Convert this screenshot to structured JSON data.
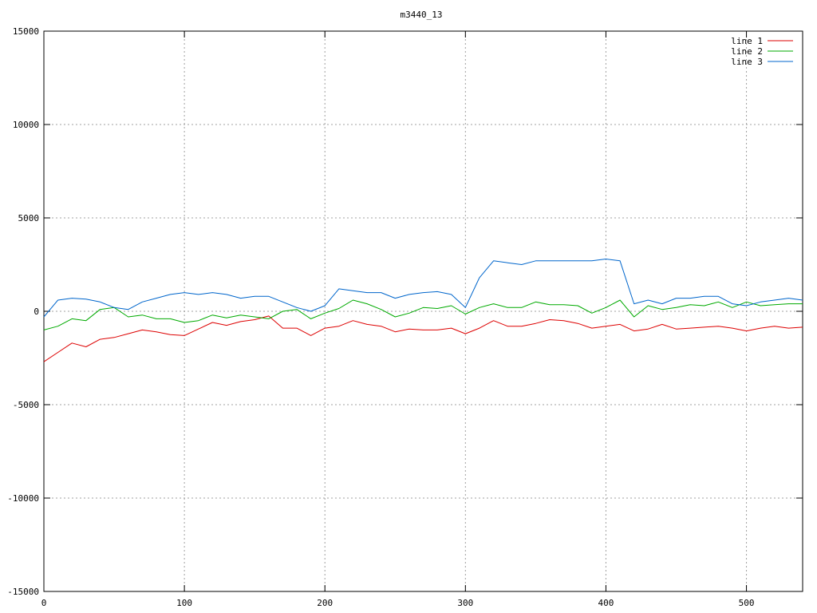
{
  "chart_data": {
    "type": "line",
    "title": "m3440_13",
    "xlabel": "",
    "ylabel": "",
    "xlim": [
      0,
      540
    ],
    "ylim": [
      -15000,
      15000
    ],
    "x_ticks": [
      0,
      100,
      200,
      300,
      400,
      500
    ],
    "y_ticks": [
      -15000,
      -10000,
      -5000,
      0,
      5000,
      10000,
      15000
    ],
    "x_tick_labels": [
      "0",
      "100",
      "200",
      "300",
      "400",
      "500"
    ],
    "y_tick_labels": [
      "-15000",
      "-10000",
      "-5000",
      "0",
      "5000",
      "10000",
      "15000"
    ],
    "grid": true,
    "legend_position": "top-right",
    "x": [
      0,
      10,
      20,
      30,
      40,
      50,
      60,
      70,
      80,
      90,
      100,
      110,
      120,
      130,
      140,
      150,
      160,
      170,
      180,
      190,
      200,
      210,
      220,
      230,
      240,
      250,
      260,
      270,
      280,
      290,
      300,
      310,
      320,
      330,
      340,
      350,
      360,
      370,
      380,
      390,
      400,
      410,
      420,
      430,
      440,
      450,
      460,
      470,
      480,
      490,
      500,
      510,
      520,
      530,
      540
    ],
    "series": [
      {
        "name": "line 1",
        "color": "#dd0000",
        "values": [
          -2700,
          -2200,
          -1700,
          -1900,
          -1500,
          -1400,
          -1200,
          -1000,
          -1100,
          -1250,
          -1300,
          -950,
          -600,
          -750,
          -550,
          -450,
          -250,
          -900,
          -900,
          -1300,
          -900,
          -800,
          -500,
          -700,
          -800,
          -1100,
          -950,
          -1000,
          -1000,
          -900,
          -1200,
          -900,
          -500,
          -800,
          -800,
          -650,
          -450,
          -500,
          -650,
          -900,
          -800,
          -700,
          -1050,
          -950,
          -700,
          -950,
          -900,
          -850,
          -800,
          -900,
          -1050,
          -900,
          -800,
          -900,
          -850
        ]
      },
      {
        "name": "line 2",
        "color": "#00aa00",
        "values": [
          -1000,
          -800,
          -400,
          -500,
          100,
          200,
          -300,
          -200,
          -400,
          -400,
          -600,
          -500,
          -200,
          -350,
          -200,
          -300,
          -400,
          0,
          100,
          -400,
          -100,
          150,
          600,
          400,
          100,
          -300,
          -100,
          200,
          150,
          300,
          -150,
          200,
          400,
          200,
          200,
          500,
          350,
          350,
          300,
          -100,
          200,
          600,
          -300,
          300,
          100,
          200,
          350,
          300,
          500,
          200,
          500,
          300,
          350,
          400,
          400
        ]
      },
      {
        "name": "line 3",
        "color": "#0066cc",
        "values": [
          -300,
          600,
          700,
          650,
          500,
          200,
          100,
          500,
          700,
          900,
          1000,
          900,
          1000,
          900,
          700,
          800,
          800,
          500,
          200,
          0,
          300,
          1200,
          1100,
          1000,
          1000,
          700,
          900,
          1000,
          1050,
          900,
          200,
          1800,
          2700,
          2600,
          2500,
          2700,
          2700,
          2700,
          2700,
          2700,
          2800,
          2700,
          400,
          600,
          400,
          700,
          700,
          800,
          800,
          400,
          300,
          500,
          600,
          700,
          600
        ]
      }
    ]
  }
}
